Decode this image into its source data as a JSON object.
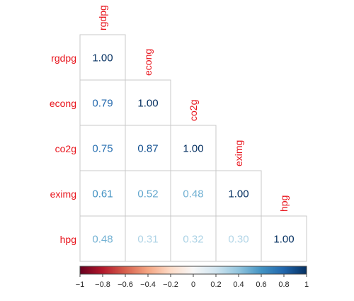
{
  "chart_data": {
    "type": "heatmap",
    "variables": [
      "rgdpg",
      "econg",
      "co2g",
      "eximg",
      "hpg"
    ],
    "matrix": [
      [
        1.0,
        null,
        null,
        null,
        null
      ],
      [
        0.79,
        1.0,
        null,
        null,
        null
      ],
      [
        0.75,
        0.87,
        1.0,
        null,
        null
      ],
      [
        0.61,
        0.52,
        0.48,
        1.0,
        null
      ],
      [
        0.48,
        0.31,
        0.32,
        0.3,
        1.0
      ]
    ],
    "value_labels": [
      [
        "1.00",
        "",
        "",
        "",
        ""
      ],
      [
        "0.79",
        "1.00",
        "",
        "",
        ""
      ],
      [
        "0.75",
        "0.87",
        "1.00",
        "",
        ""
      ],
      [
        "0.61",
        "0.52",
        "0.48",
        "1.00",
        ""
      ],
      [
        "0.48",
        "0.31",
        "0.32",
        "0.30",
        "1.00"
      ]
    ],
    "layout": "lower-triangle",
    "colorbar": {
      "range": [
        -1,
        1
      ],
      "ticks": [
        -1,
        -0.8,
        -0.6,
        -0.4,
        -0.2,
        0,
        0.2,
        0.4,
        0.6,
        0.8,
        1
      ],
      "tick_labels": [
        "−1",
        "−0.8",
        "−0.6",
        "−0.4",
        "−0.2",
        "0",
        "0.2",
        "0.4",
        "0.6",
        "0.8",
        "1"
      ],
      "colors": [
        "#67001f",
        "#b2182b",
        "#d6604d",
        "#f4a582",
        "#fddbc7",
        "#f7f7f7",
        "#d1e5f0",
        "#92c5de",
        "#4393c3",
        "#2166ac",
        "#053061"
      ],
      "placement": "bottom"
    },
    "label_color": "#e8141c"
  }
}
